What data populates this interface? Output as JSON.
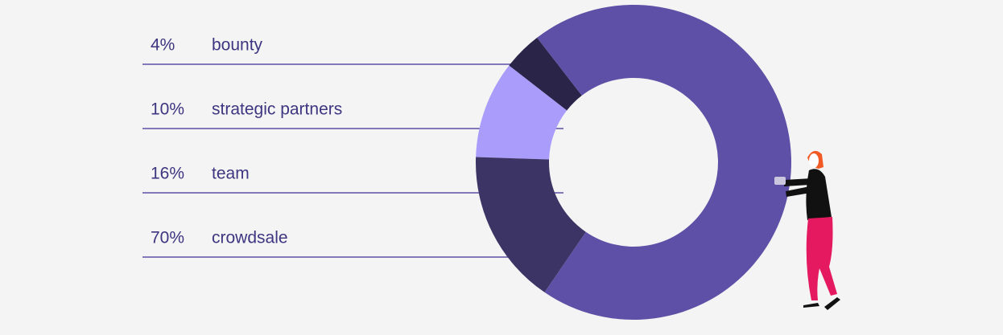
{
  "chart_data": {
    "type": "donut",
    "categories": [
      "bounty",
      "strategic partners",
      "team",
      "crowdsale"
    ],
    "values": [
      4,
      10,
      16,
      70
    ],
    "value_labels": [
      "4%",
      "10%",
      "16%",
      "70%"
    ],
    "colors": [
      "#2a2449",
      "#a99cfb",
      "#3d3466",
      "#5d50a6"
    ]
  }
}
